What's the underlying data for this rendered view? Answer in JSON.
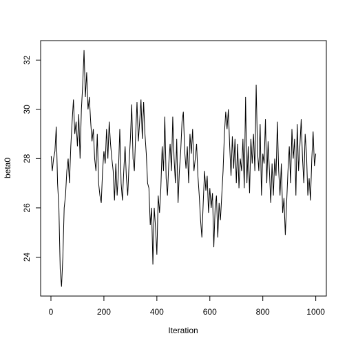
{
  "chart_data": {
    "type": "line",
    "xlabel": "Iteration",
    "ylabel": "beta0",
    "color": "#000000",
    "xlim": [
      -38.96,
      1039.96
    ],
    "ylim": [
      22.42,
      32.79
    ],
    "xticks": [
      0,
      200,
      400,
      600,
      800,
      1000
    ],
    "yticks": [
      24,
      26,
      28,
      30,
      32
    ],
    "grid": false,
    "x": [
      1,
      5,
      10,
      15,
      20,
      25,
      30,
      35,
      40,
      45,
      50,
      55,
      60,
      65,
      70,
      75,
      80,
      85,
      90,
      95,
      100,
      105,
      110,
      115,
      120,
      125,
      130,
      135,
      140,
      145,
      150,
      155,
      160,
      165,
      170,
      175,
      180,
      185,
      190,
      195,
      200,
      205,
      210,
      215,
      220,
      225,
      230,
      235,
      240,
      245,
      250,
      255,
      260,
      265,
      270,
      275,
      280,
      285,
      290,
      295,
      300,
      305,
      310,
      315,
      320,
      325,
      330,
      335,
      340,
      345,
      350,
      355,
      360,
      365,
      370,
      375,
      380,
      385,
      390,
      395,
      400,
      405,
      410,
      415,
      420,
      425,
      430,
      435,
      440,
      445,
      450,
      455,
      460,
      465,
      470,
      475,
      480,
      485,
      490,
      495,
      500,
      505,
      510,
      515,
      520,
      525,
      530,
      535,
      540,
      545,
      550,
      555,
      560,
      565,
      570,
      575,
      580,
      585,
      590,
      595,
      600,
      605,
      610,
      615,
      620,
      625,
      630,
      635,
      640,
      645,
      650,
      655,
      660,
      665,
      670,
      675,
      680,
      685,
      690,
      695,
      700,
      705,
      710,
      715,
      720,
      725,
      730,
      735,
      740,
      745,
      750,
      755,
      760,
      765,
      770,
      775,
      780,
      785,
      790,
      795,
      800,
      805,
      810,
      815,
      820,
      825,
      830,
      835,
      840,
      845,
      850,
      855,
      860,
      865,
      870,
      875,
      880,
      885,
      890,
      895,
      900,
      905,
      910,
      915,
      920,
      925,
      930,
      935,
      940,
      945,
      950,
      955,
      960,
      965,
      970,
      975,
      980,
      985,
      990,
      995,
      1000
    ],
    "values": [
      28.1,
      27.5,
      28,
      28.3,
      29.3,
      27,
      26,
      23.5,
      22.8,
      24,
      26,
      26.5,
      27.5,
      28,
      27,
      28.5,
      29.5,
      30.4,
      29,
      29.5,
      28.5,
      29.8,
      28,
      30,
      31,
      32.4,
      30.5,
      31.5,
      30,
      30.5,
      29.5,
      28.7,
      29.2,
      28,
      27.5,
      29,
      27,
      26.5,
      26.2,
      27.5,
      28.3,
      27.8,
      29.2,
      28,
      29.5,
      28.6,
      28,
      27.5,
      26.3,
      27.8,
      26.5,
      27.5,
      29.2,
      27,
      26.3,
      27.5,
      28.5,
      27.2,
      26.5,
      27.8,
      28.8,
      30.2,
      28,
      27.5,
      29,
      30.3,
      28.7,
      29.5,
      30.4,
      28.8,
      30.3,
      29,
      28.2,
      27,
      26.8,
      25.3,
      26,
      23.7,
      26,
      25.2,
      24.1,
      26.5,
      25.8,
      26.8,
      28.5,
      27.5,
      29.7,
      27.2,
      26.5,
      27.8,
      28.6,
      27.5,
      29.7,
      28,
      27,
      28.8,
      26.2,
      27.5,
      28.3,
      29.5,
      29.9,
      28.3,
      27.6,
      28.5,
      27,
      29,
      28.2,
      29.2,
      27.5,
      28,
      28.6,
      27.3,
      26.5,
      25.5,
      24.8,
      26.2,
      27.5,
      26.7,
      27.3,
      25.8,
      26.8,
      26,
      26.6,
      24.4,
      26,
      26.5,
      24.8,
      26.2,
      25.5,
      26.5,
      27.5,
      29,
      29.9,
      29.2,
      30,
      28.5,
      27.3,
      28.9,
      27.6,
      28.8,
      27,
      28.6,
      26.8,
      28,
      27.5,
      28.8,
      26.8,
      30.5,
      27,
      28.5,
      26.6,
      28.8,
      27.8,
      29,
      27.5,
      31,
      28.3,
      27.5,
      29.4,
      26.5,
      28.2,
      27.8,
      29.6,
      27,
      28.7,
      27.5,
      26.2,
      27.8,
      26.5,
      28,
      27.3,
      29.5,
      27.5,
      26.5,
      27.8,
      25.8,
      26.4,
      24.9,
      26.2,
      27.5,
      28.5,
      27,
      29.2,
      28,
      28.8,
      26.5,
      29.4,
      27.5,
      28.5,
      29.6,
      28,
      27,
      29,
      28.2,
      26.5,
      27.2,
      26.3,
      28,
      29.1,
      27.7,
      28.2
    ]
  }
}
